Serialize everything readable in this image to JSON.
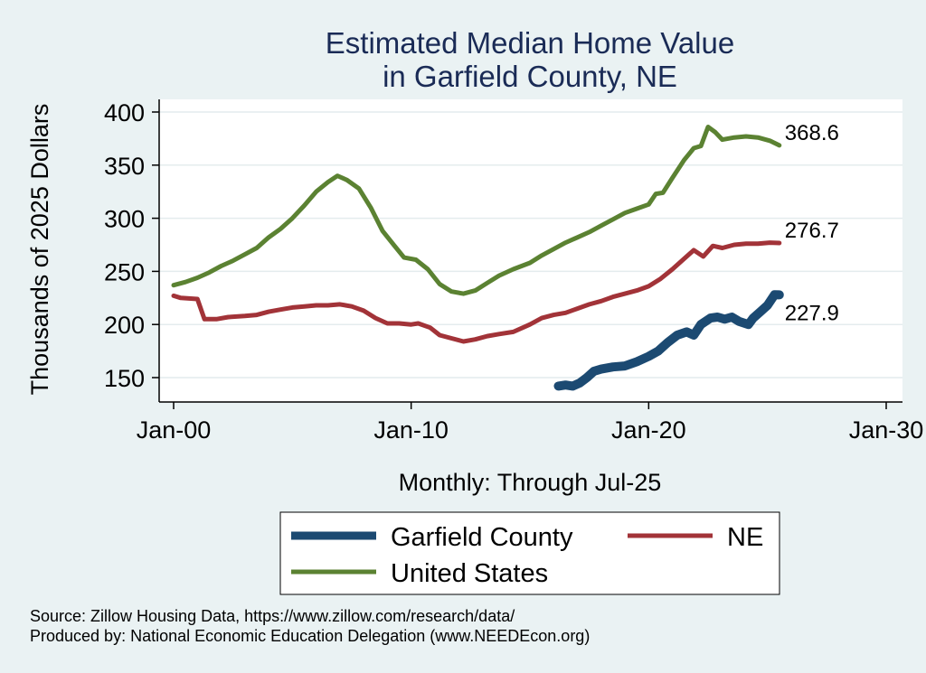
{
  "chart_data": {
    "type": "line",
    "title_lines": [
      "Estimated Median Home Value",
      "in Garfield County, NE"
    ],
    "xlabel": "Monthly: Through Jul-25",
    "ylabel": "Thousands of 2025 Dollars",
    "x_ticks": [
      {
        "value": 2000.0,
        "label": "Jan-00"
      },
      {
        "value": 2010.0,
        "label": "Jan-10"
      },
      {
        "value": 2020.0,
        "label": "Jan-20"
      },
      {
        "value": 2030.0,
        "label": "Jan-30"
      }
    ],
    "y_ticks": [
      150,
      200,
      250,
      300,
      350,
      400
    ],
    "xlim": [
      2000.0,
      2030.0
    ],
    "ylim": [
      130,
      410
    ],
    "grid": true,
    "legend_position": "bottom",
    "colors": {
      "background": "#eaf2f3",
      "plot_bg": "#ffffff",
      "title": "#1a2b56",
      "grid": "#e4ecee"
    },
    "series": [
      {
        "name": "United States",
        "color": "#5b8232",
        "stroke": "thin",
        "end_label": "368.6",
        "points": [
          [
            2000.0,
            237
          ],
          [
            2000.5,
            240
          ],
          [
            2001.0,
            244
          ],
          [
            2001.5,
            249
          ],
          [
            2002.0,
            255
          ],
          [
            2002.5,
            260
          ],
          [
            2003.0,
            266
          ],
          [
            2003.5,
            272
          ],
          [
            2004.0,
            282
          ],
          [
            2004.5,
            290
          ],
          [
            2005.0,
            300
          ],
          [
            2005.5,
            312
          ],
          [
            2006.0,
            325
          ],
          [
            2006.5,
            334
          ],
          [
            2006.9,
            340
          ],
          [
            2007.3,
            336
          ],
          [
            2007.8,
            328
          ],
          [
            2008.3,
            310
          ],
          [
            2008.8,
            288
          ],
          [
            2009.3,
            274
          ],
          [
            2009.7,
            263
          ],
          [
            2010.2,
            261
          ],
          [
            2010.7,
            252
          ],
          [
            2011.2,
            238
          ],
          [
            2011.7,
            231
          ],
          [
            2012.2,
            229
          ],
          [
            2012.7,
            232
          ],
          [
            2013.2,
            239
          ],
          [
            2013.7,
            246
          ],
          [
            2014.3,
            252
          ],
          [
            2015.0,
            258
          ],
          [
            2015.5,
            265
          ],
          [
            2016.0,
            271
          ],
          [
            2016.5,
            277
          ],
          [
            2017.0,
            282
          ],
          [
            2017.5,
            287
          ],
          [
            2018.0,
            293
          ],
          [
            2018.5,
            299
          ],
          [
            2019.0,
            305
          ],
          [
            2019.5,
            309
          ],
          [
            2020.0,
            313
          ],
          [
            2020.3,
            323
          ],
          [
            2020.6,
            324
          ],
          [
            2021.0,
            338
          ],
          [
            2021.5,
            355
          ],
          [
            2021.9,
            366
          ],
          [
            2022.2,
            368
          ],
          [
            2022.5,
            386
          ],
          [
            2022.8,
            381
          ],
          [
            2023.1,
            374
          ],
          [
            2023.6,
            376
          ],
          [
            2024.1,
            377
          ],
          [
            2024.6,
            376
          ],
          [
            2025.1,
            373
          ],
          [
            2025.5,
            368.6
          ]
        ]
      },
      {
        "name": "NE",
        "color": "#a23338",
        "stroke": "thin",
        "end_label": "276.7",
        "points": [
          [
            2000.0,
            227
          ],
          [
            2000.3,
            225
          ],
          [
            2001.0,
            224
          ],
          [
            2001.3,
            205
          ],
          [
            2001.8,
            205
          ],
          [
            2002.3,
            207
          ],
          [
            2003.0,
            208
          ],
          [
            2003.5,
            209
          ],
          [
            2004.0,
            212
          ],
          [
            2004.5,
            214
          ],
          [
            2005.0,
            216
          ],
          [
            2005.5,
            217
          ],
          [
            2006.0,
            218
          ],
          [
            2006.5,
            218
          ],
          [
            2007.0,
            219
          ],
          [
            2007.5,
            217
          ],
          [
            2008.0,
            213
          ],
          [
            2008.5,
            206
          ],
          [
            2009.0,
            201
          ],
          [
            2009.5,
            201
          ],
          [
            2010.0,
            200
          ],
          [
            2010.3,
            201
          ],
          [
            2010.8,
            197
          ],
          [
            2011.2,
            190
          ],
          [
            2011.7,
            187
          ],
          [
            2012.2,
            184
          ],
          [
            2012.7,
            186
          ],
          [
            2013.2,
            189
          ],
          [
            2013.7,
            191
          ],
          [
            2014.3,
            193
          ],
          [
            2015.0,
            200
          ],
          [
            2015.5,
            206
          ],
          [
            2016.0,
            209
          ],
          [
            2016.5,
            211
          ],
          [
            2017.0,
            215
          ],
          [
            2017.5,
            219
          ],
          [
            2018.0,
            222
          ],
          [
            2018.5,
            226
          ],
          [
            2019.0,
            229
          ],
          [
            2019.5,
            232
          ],
          [
            2020.0,
            236
          ],
          [
            2020.5,
            243
          ],
          [
            2021.0,
            252
          ],
          [
            2021.5,
            262
          ],
          [
            2021.9,
            270
          ],
          [
            2022.3,
            264
          ],
          [
            2022.7,
            274
          ],
          [
            2023.1,
            272
          ],
          [
            2023.6,
            275
          ],
          [
            2024.1,
            276
          ],
          [
            2024.6,
            276
          ],
          [
            2025.1,
            277
          ],
          [
            2025.5,
            276.7
          ]
        ]
      },
      {
        "name": "Garfield County",
        "color": "#1c4a72",
        "stroke": "thick",
        "end_label": "227.9",
        "points": [
          [
            2016.2,
            142
          ],
          [
            2016.5,
            143
          ],
          [
            2016.8,
            142
          ],
          [
            2017.1,
            145
          ],
          [
            2017.4,
            150
          ],
          [
            2017.7,
            156
          ],
          [
            2018.0,
            158
          ],
          [
            2018.5,
            160
          ],
          [
            2019.0,
            161
          ],
          [
            2019.5,
            165
          ],
          [
            2020.0,
            170
          ],
          [
            2020.4,
            175
          ],
          [
            2020.8,
            183
          ],
          [
            2021.2,
            190
          ],
          [
            2021.6,
            193
          ],
          [
            2021.9,
            190
          ],
          [
            2022.2,
            200
          ],
          [
            2022.6,
            206
          ],
          [
            2022.9,
            207
          ],
          [
            2023.2,
            205
          ],
          [
            2023.5,
            207
          ],
          [
            2023.8,
            203
          ],
          [
            2024.2,
            200
          ],
          [
            2024.4,
            206
          ],
          [
            2024.7,
            212
          ],
          [
            2025.0,
            218
          ],
          [
            2025.3,
            228
          ],
          [
            2025.5,
            227.9
          ]
        ]
      }
    ]
  },
  "legend": [
    "Garfield County",
    "NE",
    "United States"
  ],
  "notes": {
    "source": "Source: Zillow Housing Data, https://www.zillow.com/research/data/",
    "produced_by": "Produced by: National Economic Education Delegation (www.NEEDEcon.org)"
  }
}
